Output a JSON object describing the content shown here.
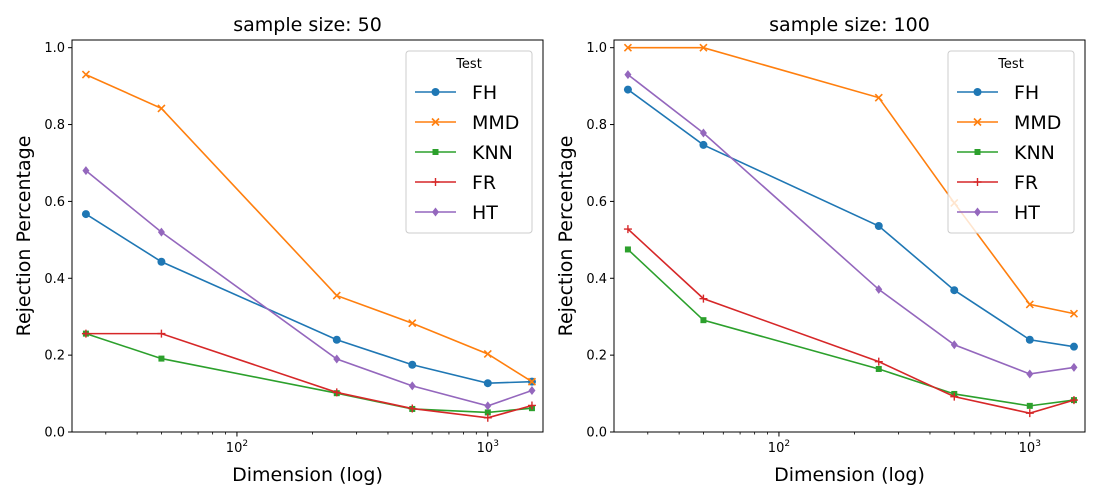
{
  "chart_data": [
    {
      "type": "line",
      "title": "sample size: 50",
      "xlabel": "Dimension (log)",
      "ylabel": "Rejection Percentage",
      "xscale": "log",
      "xlim": [
        22,
        1660
      ],
      "ylim": [
        0,
        1.02
      ],
      "xticks": [
        {
          "value": 100,
          "base": "10",
          "exp": "2"
        },
        {
          "value": 1000,
          "base": "10",
          "exp": "3"
        }
      ],
      "yticks": [
        {
          "value": 0.0,
          "label": "0.0"
        },
        {
          "value": 0.2,
          "label": "0.2"
        },
        {
          "value": 0.4,
          "label": "0.4"
        },
        {
          "value": 0.6,
          "label": "0.6"
        },
        {
          "value": 0.8,
          "label": "0.8"
        },
        {
          "value": 1.0,
          "label": "1.0"
        }
      ],
      "grid": false,
      "legend": {
        "title": "Test",
        "position": "top-right"
      },
      "x": [
        25,
        50,
        250,
        500,
        1000,
        1500
      ],
      "series": [
        {
          "name": "FH",
          "color": "#1f77b4",
          "marker": "circle",
          "values": [
            0.567,
            0.443,
            0.24,
            0.175,
            0.127,
            0.131
          ]
        },
        {
          "name": "MMD",
          "color": "#ff7f0e",
          "marker": "x",
          "values": [
            0.93,
            0.842,
            0.355,
            0.283,
            0.203,
            0.131
          ]
        },
        {
          "name": "KNN",
          "color": "#2ca02c",
          "marker": "square",
          "values": [
            0.256,
            0.191,
            0.101,
            0.06,
            0.051,
            0.062
          ]
        },
        {
          "name": "FR",
          "color": "#d62728",
          "marker": "plus",
          "values": [
            0.256,
            0.256,
            0.103,
            0.061,
            0.037,
            0.069
          ]
        },
        {
          "name": "HT",
          "color": "#9467bd",
          "marker": "diamond",
          "values": [
            0.68,
            0.52,
            0.19,
            0.12,
            0.068,
            0.108
          ]
        }
      ]
    },
    {
      "type": "line",
      "title": "sample size: 100",
      "xlabel": "Dimension (log)",
      "ylabel": "Rejection Percentage",
      "xscale": "log",
      "xlim": [
        22,
        1660
      ],
      "ylim": [
        0,
        1.02
      ],
      "xticks": [
        {
          "value": 100,
          "base": "10",
          "exp": "2"
        },
        {
          "value": 1000,
          "base": "10",
          "exp": "3"
        }
      ],
      "yticks": [
        {
          "value": 0.0,
          "label": "0.0"
        },
        {
          "value": 0.2,
          "label": "0.2"
        },
        {
          "value": 0.4,
          "label": "0.4"
        },
        {
          "value": 0.6,
          "label": "0.6"
        },
        {
          "value": 0.8,
          "label": "0.8"
        },
        {
          "value": 1.0,
          "label": "1.0"
        }
      ],
      "grid": false,
      "legend": {
        "title": "Test",
        "position": "top-right"
      },
      "x": [
        25,
        50,
        250,
        500,
        1000,
        1500
      ],
      "series": [
        {
          "name": "FH",
          "color": "#1f77b4",
          "marker": "circle",
          "values": [
            0.891,
            0.747,
            0.536,
            0.369,
            0.24,
            0.222
          ]
        },
        {
          "name": "MMD",
          "color": "#ff7f0e",
          "marker": "x",
          "values": [
            1.0,
            1.0,
            0.87,
            0.596,
            0.332,
            0.308
          ]
        },
        {
          "name": "KNN",
          "color": "#2ca02c",
          "marker": "square",
          "values": [
            0.475,
            0.291,
            0.164,
            0.099,
            0.068,
            0.083
          ]
        },
        {
          "name": "FR",
          "color": "#d62728",
          "marker": "plus",
          "values": [
            0.528,
            0.347,
            0.183,
            0.092,
            0.049,
            0.083
          ]
        },
        {
          "name": "HT",
          "color": "#9467bd",
          "marker": "diamond",
          "values": [
            0.93,
            0.778,
            0.371,
            0.227,
            0.151,
            0.168
          ]
        }
      ]
    }
  ]
}
